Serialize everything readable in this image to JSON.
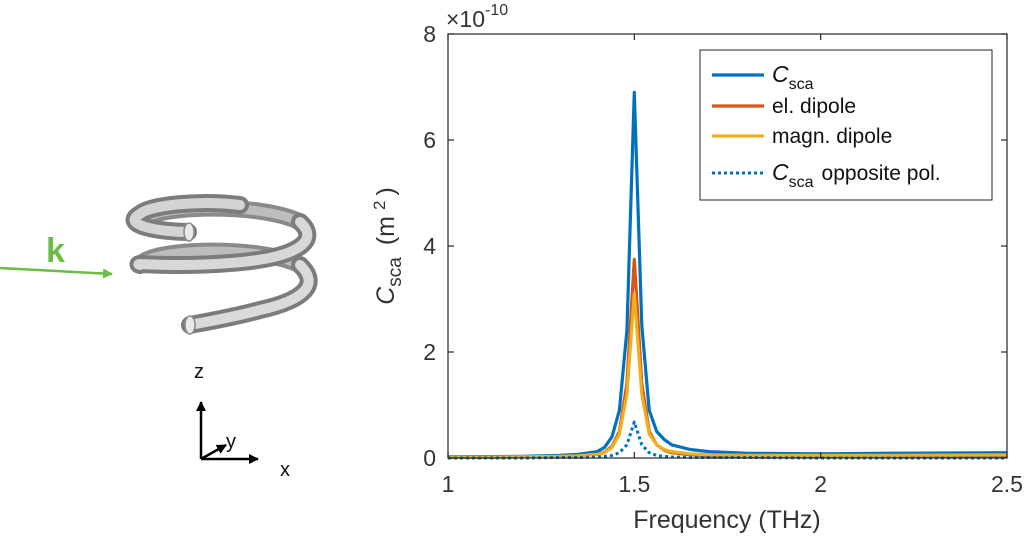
{
  "illustration": {
    "wave_vector_label": "k",
    "axis_labels": {
      "z": "z",
      "y": "y",
      "x": "x"
    },
    "colors": {
      "arrow": "#6cbd45",
      "helix": "#b9b9b9"
    }
  },
  "chart_data": {
    "type": "line",
    "xlabel": "Frequency (THz)",
    "ylabel": {
      "main": "C",
      "sub": "sca",
      "unit_open": "(m",
      "unit_exp": "2",
      "unit_close": ")"
    },
    "xlim": [
      1,
      2.5
    ],
    "ylim": [
      0,
      8
    ],
    "xticks": [
      1,
      1.5,
      2,
      2.5
    ],
    "xtick_labels": [
      "1",
      "1.5",
      "2",
      "2.5"
    ],
    "yticks": [
      0,
      2,
      4,
      6,
      8
    ],
    "ytick_labels": [
      "0",
      "2",
      "4",
      "6",
      "8"
    ],
    "y_multiplier": {
      "base": "×10",
      "exponent": "-10"
    },
    "legend_position": "top-right",
    "series": [
      {
        "name": "C_sca",
        "label_main": "C",
        "label_sub": "sca",
        "label_rest": "",
        "color": "#0072bd",
        "style": "solid",
        "x": [
          1.0,
          1.2,
          1.3,
          1.35,
          1.4,
          1.42,
          1.44,
          1.46,
          1.48,
          1.5,
          1.52,
          1.54,
          1.56,
          1.58,
          1.6,
          1.65,
          1.7,
          1.8,
          2.0,
          2.2,
          2.5
        ],
        "y": [
          0.02,
          0.03,
          0.05,
          0.07,
          0.12,
          0.2,
          0.4,
          0.9,
          2.4,
          6.9,
          2.5,
          0.9,
          0.5,
          0.35,
          0.25,
          0.16,
          0.12,
          0.09,
          0.08,
          0.09,
          0.1
        ]
      },
      {
        "name": "el. dipole",
        "label_main": "el. dipole",
        "label_sub": "",
        "label_rest": "",
        "color": "#d95319",
        "style": "solid",
        "x": [
          1.0,
          1.2,
          1.3,
          1.35,
          1.4,
          1.42,
          1.44,
          1.46,
          1.48,
          1.5,
          1.52,
          1.54,
          1.56,
          1.58,
          1.6,
          1.65,
          1.7,
          1.8,
          2.0,
          2.2,
          2.5
        ],
        "y": [
          0.01,
          0.02,
          0.03,
          0.04,
          0.07,
          0.11,
          0.22,
          0.5,
          1.4,
          3.75,
          1.4,
          0.5,
          0.25,
          0.15,
          0.1,
          0.06,
          0.04,
          0.03,
          0.02,
          0.02,
          0.02
        ]
      },
      {
        "name": "magn. dipole",
        "label_main": "magn. dipole",
        "label_sub": "",
        "label_rest": "",
        "color": "#edb120",
        "style": "solid",
        "x": [
          1.0,
          1.2,
          1.3,
          1.35,
          1.4,
          1.42,
          1.44,
          1.46,
          1.48,
          1.5,
          1.52,
          1.54,
          1.56,
          1.58,
          1.6,
          1.65,
          1.7,
          1.8,
          2.0,
          2.2,
          2.5
        ],
        "y": [
          0.01,
          0.02,
          0.03,
          0.04,
          0.07,
          0.1,
          0.2,
          0.45,
          1.2,
          3.1,
          1.2,
          0.45,
          0.25,
          0.16,
          0.12,
          0.08,
          0.06,
          0.05,
          0.05,
          0.05,
          0.06
        ]
      },
      {
        "name": "C_sca opposite pol.",
        "label_main": "C",
        "label_sub": "sca",
        "label_rest": "opposite pol.",
        "color": "#0072bd",
        "style": "dotted",
        "x": [
          1.0,
          1.2,
          1.3,
          1.35,
          1.4,
          1.42,
          1.44,
          1.46,
          1.48,
          1.5,
          1.52,
          1.54,
          1.56,
          1.58,
          1.6,
          1.65,
          1.7,
          1.8,
          2.0,
          2.2,
          2.5
        ],
        "y": [
          0.0,
          0.0,
          0.01,
          0.01,
          0.02,
          0.03,
          0.05,
          0.1,
          0.25,
          0.68,
          0.25,
          0.1,
          0.05,
          0.03,
          0.02,
          0.01,
          0.01,
          0.01,
          0.0,
          0.0,
          0.0
        ]
      }
    ]
  }
}
